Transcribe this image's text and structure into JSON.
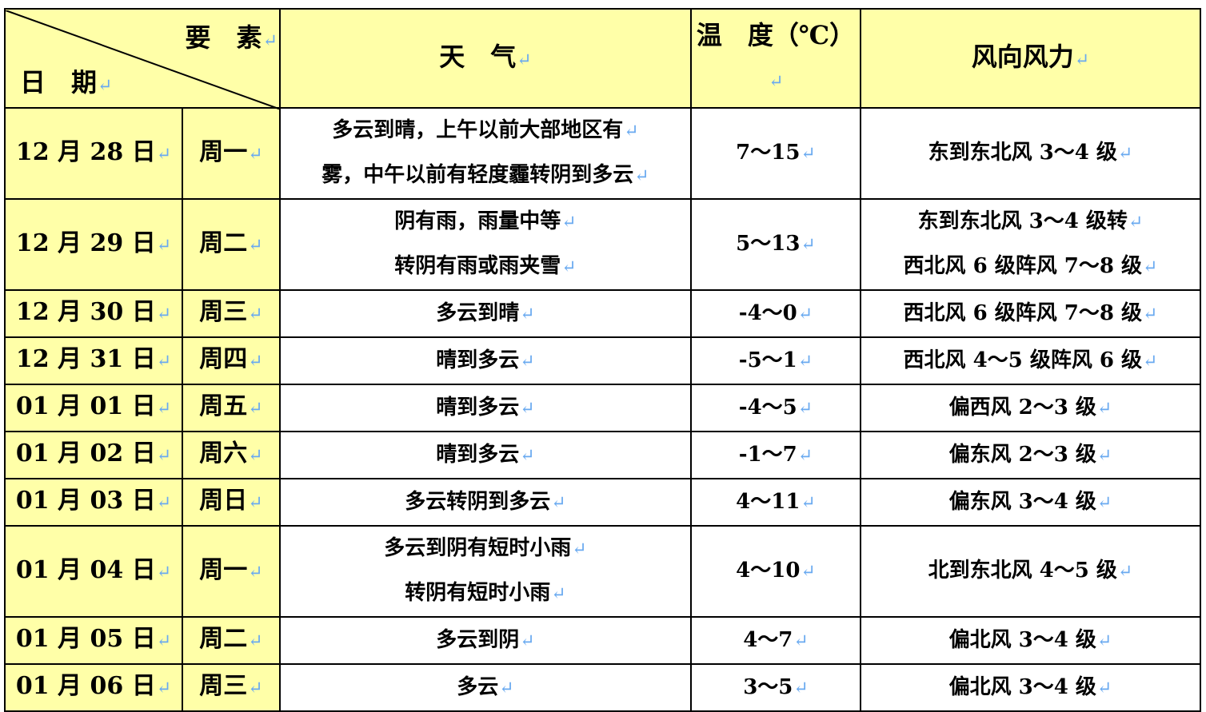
{
  "colors": {
    "header_fill": "#ffffa8",
    "return_mark": "#6aaaf0"
  },
  "return_mark": "↵",
  "header": {
    "element_label": "要　素",
    "date_label": "日　期",
    "weather": "天　气",
    "temperature": "温　度（℃）",
    "wind": "风向风力"
  },
  "rows": [
    {
      "date": "12 月 28 日",
      "weekday": "周一",
      "weather": [
        "多云到晴，上午以前大部地区有",
        "雾，中午以前有轻度霾转阴到多云"
      ],
      "temp": "7～15",
      "wind": [
        "东到东北风 3～4 级"
      ]
    },
    {
      "date": "12 月 29 日",
      "weekday": "周二",
      "weather": [
        "阴有雨，雨量中等",
        "转阴有雨或雨夹雪"
      ],
      "temp": "5～13",
      "wind": [
        "东到东北风 3～4 级转",
        "西北风 6 级阵风 7～8 级"
      ]
    },
    {
      "date": "12 月 30 日",
      "weekday": "周三",
      "weather": [
        "多云到晴"
      ],
      "temp": "-4～0",
      "wind": [
        "西北风 6 级阵风 7～8 级"
      ]
    },
    {
      "date": "12 月 31 日",
      "weekday": "周四",
      "weather": [
        "晴到多云"
      ],
      "temp": "-5～1",
      "wind": [
        "西北风 4～5 级阵风 6 级"
      ]
    },
    {
      "date": "01 月 01 日",
      "weekday": "周五",
      "weather": [
        "晴到多云"
      ],
      "temp": "-4～5",
      "wind": [
        "偏西风 2～3 级"
      ]
    },
    {
      "date": "01 月 02 日",
      "weekday": "周六",
      "weather": [
        "晴到多云"
      ],
      "temp": "-1～7",
      "wind": [
        "偏东风 2～3 级"
      ]
    },
    {
      "date": "01 月 03 日",
      "weekday": "周日",
      "weather": [
        "多云转阴到多云"
      ],
      "temp": "4～11",
      "wind": [
        "偏东风 3～4 级"
      ]
    },
    {
      "date": "01 月 04 日",
      "weekday": "周一",
      "weather": [
        "多云到阴有短时小雨",
        "转阴有短时小雨"
      ],
      "temp": "4～10",
      "wind": [
        "北到东北风 4～5 级"
      ]
    },
    {
      "date": "01 月 05 日",
      "weekday": "周二",
      "weather": [
        "多云到阴"
      ],
      "temp": "4～7",
      "wind": [
        "偏北风 3～4 级"
      ]
    },
    {
      "date": "01 月 06 日",
      "weekday": "周三",
      "weather": [
        "多云"
      ],
      "temp": "3～5",
      "wind": [
        "偏北风 3～4 级"
      ]
    }
  ]
}
